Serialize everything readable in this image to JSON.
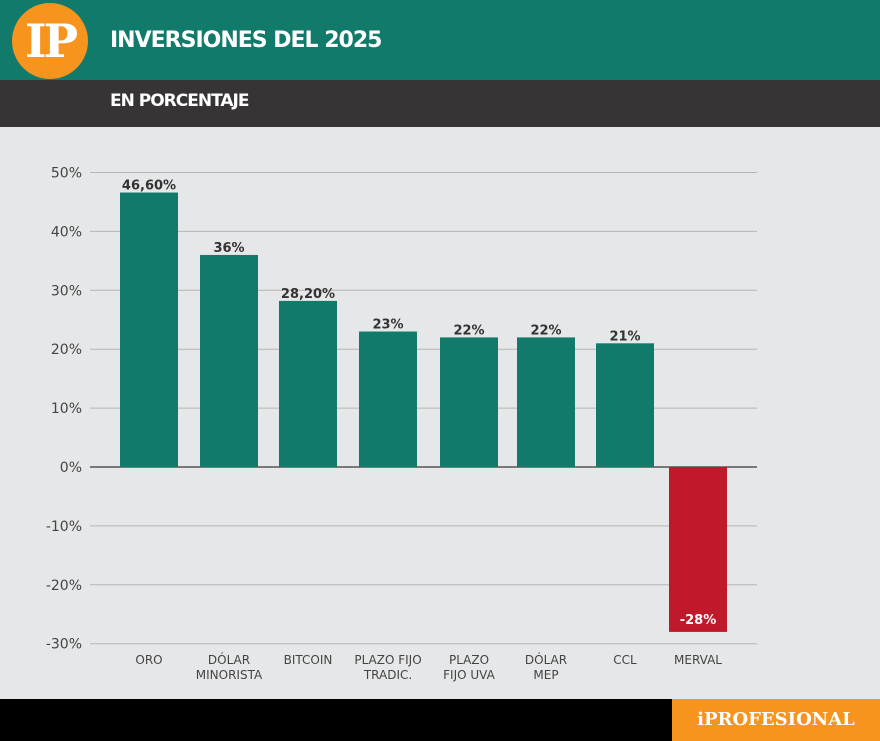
{
  "header": {
    "logo": "IP",
    "title": "INVERSIONES DEL 2025",
    "subtitle": "EN PORCENTAJE"
  },
  "footer": {
    "brand": "iPROFESIONAL"
  },
  "colors": {
    "positive": "#127a6b",
    "negative": "#c1192c",
    "header": "#127a6b",
    "subheader": "#363435",
    "accent": "#f7941d"
  },
  "chart_data": {
    "type": "bar",
    "title": "INVERSIONES DEL 2025",
    "subtitle": "EN PORCENTAJE",
    "categories": [
      [
        "ORO"
      ],
      [
        "DÓLAR",
        "MINORISTA"
      ],
      [
        "BITCOIN"
      ],
      [
        "PLAZO  FIJO",
        "TRADIC."
      ],
      [
        "PLAZO",
        "FIJO  UVA"
      ],
      [
        "DÓLAR",
        "MEP"
      ],
      [
        "CCL"
      ],
      [
        "MERVAL"
      ]
    ],
    "values": [
      46.6,
      36,
      28.2,
      23,
      22,
      22,
      21,
      -28
    ],
    "data_labels": [
      "46,60%",
      "36%",
      "28,20%",
      "23%",
      "22%",
      "22%",
      "21%",
      "-28%"
    ],
    "ylim": [
      -30,
      50
    ],
    "yticks": [
      "50%",
      "40%",
      "30%",
      "20%",
      "10%",
      "0%",
      "-10%",
      "-20%",
      "-30%"
    ],
    "grid": true,
    "legend": "none"
  }
}
